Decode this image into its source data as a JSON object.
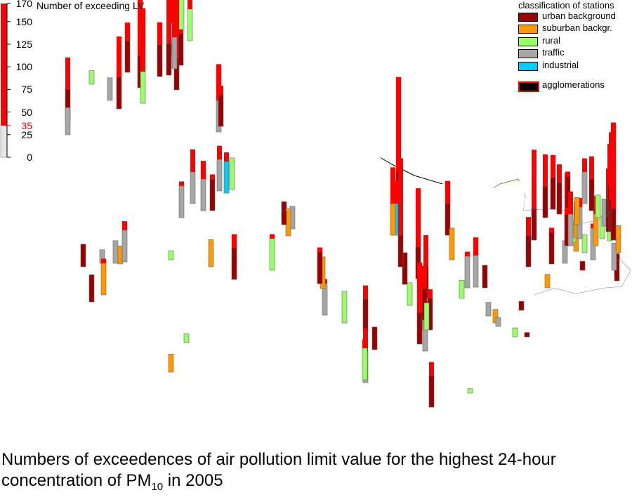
{
  "scale": {
    "title": "Number of exceeding LV",
    "ticks": [
      "170",
      "150",
      "125",
      "100",
      "75",
      "50",
      "35",
      "25",
      "0"
    ],
    "limit_label": "35",
    "max": 170,
    "limit": 35
  },
  "legend": {
    "title": "classification of stations",
    "items": [
      {
        "label": "urban background",
        "color": "#990000"
      },
      {
        "label": "suburban backgr.",
        "color": "#FF9900"
      },
      {
        "label": "rural",
        "color": "#99FF66"
      },
      {
        "label": "traffic",
        "color": "#A6A6A6"
      },
      {
        "label": "industrial",
        "color": "#00CCFF"
      }
    ],
    "agglomerations": {
      "label": "agglomerations",
      "color": "#000000",
      "border": "#FF0000"
    }
  },
  "colors": {
    "exceed": "#FF0000",
    "agglomeration_fill": "#FFFFCC",
    "outer_border": "#000000",
    "region_border": "#000000",
    "district_border": "#808080"
  },
  "caption": {
    "line1": "Numbers of exceedences of air pollution limit value for the highest 24-hour",
    "line2_prefix": "concentration of PM",
    "line2_sub": "10",
    "line2_suffix": " in 2005"
  },
  "stations": [
    {
      "cls": "urban background",
      "count": 170,
      "agg": true
    },
    {
      "cls": "urban background",
      "count": 150,
      "agg": true
    },
    {
      "cls": "rural",
      "count": 110,
      "agg": true
    },
    {
      "cls": "traffic",
      "count": 120,
      "agg": true
    },
    {
      "cls": "urban background",
      "count": 130,
      "agg": true
    },
    {
      "cls": "traffic",
      "count": 90,
      "agg": true
    },
    {
      "cls": "rural",
      "count": 75,
      "agg": true
    },
    {
      "cls": "urban background",
      "count": 60,
      "agg": true
    },
    {
      "cls": "urban background",
      "count": 55,
      "agg": true
    },
    {
      "cls": "urban background",
      "count": 120,
      "agg": true
    },
    {
      "cls": "rural",
      "count": 105,
      "agg": true
    },
    {
      "cls": "urban background",
      "count": 80,
      "agg": true
    },
    {
      "cls": "traffic",
      "count": 25,
      "agg": true
    },
    {
      "cls": "rural",
      "count": 15,
      "agg": false
    },
    {
      "cls": "urban background",
      "count": 70,
      "agg": false
    },
    {
      "cls": "traffic",
      "count": 30,
      "agg": false
    },
    {
      "cls": "traffic",
      "count": 60,
      "agg": true
    },
    {
      "cls": "traffic",
      "count": 40,
      "agg": true
    },
    {
      "cls": "traffic",
      "count": 55,
      "agg": true
    },
    {
      "cls": "urban background",
      "count": 40,
      "agg": true
    },
    {
      "cls": "traffic",
      "count": 50,
      "agg": true
    },
    {
      "cls": "industrial",
      "count": 45,
      "agg": true
    },
    {
      "cls": "rural",
      "count": 35,
      "agg": true
    },
    {
      "cls": "traffic",
      "count": 75,
      "agg": false
    },
    {
      "cls": "urban background",
      "count": 45,
      "agg": false
    },
    {
      "cls": "suburban backgr.",
      "count": 30,
      "agg": false
    },
    {
      "cls": "urban background",
      "count": 50,
      "agg": false
    },
    {
      "cls": "rural",
      "count": 10,
      "agg": false
    },
    {
      "cls": "traffic",
      "count": 15,
      "agg": false
    },
    {
      "cls": "traffic",
      "count": 25,
      "agg": false
    },
    {
      "cls": "suburban backgr.",
      "count": 20,
      "agg": false
    },
    {
      "cls": "traffic",
      "count": 45,
      "agg": false
    },
    {
      "cls": "urban background",
      "count": 30,
      "agg": false
    },
    {
      "cls": "urban background",
      "count": 25,
      "agg": false
    },
    {
      "cls": "suburban backgr.",
      "count": 40,
      "agg": false
    },
    {
      "cls": "rural",
      "count": 40,
      "agg": false
    },
    {
      "cls": "urban background",
      "count": 20,
      "agg": false
    },
    {
      "cls": "traffic",
      "count": 25,
      "agg": false
    },
    {
      "cls": "suburban backgr.",
      "count": 30,
      "agg": false
    },
    {
      "cls": "urban background",
      "count": 15,
      "agg": false
    },
    {
      "cls": "suburban backgr.",
      "count": 20,
      "agg": false
    },
    {
      "cls": "rural",
      "count": 10,
      "agg": false
    },
    {
      "cls": "urban background",
      "count": 50,
      "agg": false
    },
    {
      "cls": "urban background",
      "count": 25,
      "agg": false
    },
    {
      "cls": "traffic",
      "count": 60,
      "agg": false
    },
    {
      "cls": "rural",
      "count": 35,
      "agg": false
    },
    {
      "cls": "traffic",
      "count": 40,
      "agg": false
    },
    {
      "cls": "suburban backgr.",
      "count": 35,
      "agg": false
    },
    {
      "cls": "urban background",
      "count": 40,
      "agg": false
    },
    {
      "cls": "urban background",
      "count": 35,
      "agg": false
    },
    {
      "cls": "rural",
      "count": 25,
      "agg": false
    },
    {
      "cls": "rural",
      "count": 20,
      "agg": false
    },
    {
      "cls": "urban background",
      "count": 70,
      "agg": false
    },
    {
      "cls": "urban background",
      "count": 45,
      "agg": false
    },
    {
      "cls": "rural",
      "count": 5,
      "agg": false
    },
    {
      "cls": "urban background",
      "count": 60,
      "agg": false
    },
    {
      "cls": "suburban backgr.",
      "count": 35,
      "agg": false
    },
    {
      "cls": "rural",
      "count": 20,
      "agg": false
    },
    {
      "cls": "traffic",
      "count": 40,
      "agg": false
    },
    {
      "cls": "traffic",
      "count": 55,
      "agg": false
    },
    {
      "cls": "urban background",
      "count": 25,
      "agg": false
    },
    {
      "cls": "traffic",
      "count": 15,
      "agg": false
    },
    {
      "cls": "suburban backgr.",
      "count": 15,
      "agg": false
    },
    {
      "cls": "traffic",
      "count": 10,
      "agg": false
    },
    {
      "cls": "rural",
      "count": 10,
      "agg": false
    },
    {
      "cls": "urban background",
      "count": 10,
      "agg": false
    },
    {
      "cls": "urban background",
      "count": 5,
      "agg": false
    },
    {
      "cls": "suburban backgr.",
      "count": 15,
      "agg": false
    },
    {
      "cls": "urban background",
      "count": 40,
      "agg": false
    },
    {
      "cls": "traffic",
      "count": 25,
      "agg": false
    },
    {
      "cls": "suburban backgr.",
      "count": 55,
      "agg": false
    },
    {
      "cls": "rural",
      "count": 20,
      "agg": false
    },
    {
      "cls": "traffic",
      "count": 40,
      "agg": false
    },
    {
      "cls": "suburban backgr.",
      "count": 55,
      "agg": false
    },
    {
      "cls": "rural",
      "count": 25,
      "agg": false
    },
    {
      "cls": "urban background",
      "count": 30,
      "agg": false
    },
    {
      "cls": "traffic",
      "count": 30,
      "agg": false
    },
    {
      "cls": "suburban backgr.",
      "count": 30,
      "agg": false
    },
    {
      "cls": "rural",
      "count": 20,
      "agg": false
    },
    {
      "cls": "urban background",
      "count": 10,
      "agg": false
    },
    {
      "cls": "urban background",
      "count": 80,
      "agg": false
    },
    {
      "cls": "rural",
      "count": 15,
      "agg": false
    },
    {
      "cls": "rural",
      "count": 5,
      "agg": false
    },
    {
      "cls": "traffic",
      "count": 45,
      "agg": false
    },
    {
      "cls": "urban background",
      "count": 55,
      "agg": false
    },
    {
      "cls": "urban background",
      "count": 100,
      "agg": false
    },
    {
      "cls": "urban background",
      "count": 70,
      "agg": false
    },
    {
      "cls": "urban background",
      "count": 60,
      "agg": false
    },
    {
      "cls": "urban background",
      "count": 55,
      "agg": false
    },
    {
      "cls": "urban background",
      "count": 40,
      "agg": false
    },
    {
      "cls": "traffic",
      "count": 60,
      "agg": false
    },
    {
      "cls": "suburban backgr.",
      "count": 30,
      "agg": false
    },
    {
      "cls": "traffic",
      "count": 50,
      "agg": false
    },
    {
      "cls": "urban background",
      "count": 60,
      "agg": false
    },
    {
      "cls": "rural",
      "count": 25,
      "agg": false
    },
    {
      "cls": "traffic",
      "count": 30,
      "agg": false
    },
    {
      "cls": "urban background",
      "count": 70,
      "agg": true
    },
    {
      "cls": "urban background",
      "count": 80,
      "agg": true
    },
    {
      "cls": "urban background",
      "count": 110,
      "agg": true
    },
    {
      "cls": "urban background",
      "count": 130,
      "agg": true
    },
    {
      "cls": "traffic",
      "count": 35,
      "agg": true
    },
    {
      "cls": "urban background",
      "count": 140,
      "agg": true
    },
    {
      "cls": "industrial",
      "count": 60,
      "agg": true
    },
    {
      "cls": "rural",
      "count": 45,
      "agg": true
    },
    {
      "cls": "suburban backgr.",
      "count": 75,
      "agg": true
    },
    {
      "cls": "urban background",
      "count": 120,
      "agg": true
    },
    {
      "cls": "urban background",
      "count": 100,
      "agg": true
    },
    {
      "cls": "industrial",
      "count": 45,
      "agg": true
    },
    {
      "cls": "traffic",
      "count": 55,
      "agg": true
    },
    {
      "cls": "urban background",
      "count": 90,
      "agg": true
    },
    {
      "cls": "urban background",
      "count": 60,
      "agg": true
    },
    {
      "cls": "rural",
      "count": 30,
      "agg": true
    },
    {
      "cls": "urban background",
      "count": 50,
      "agg": true
    }
  ]
}
